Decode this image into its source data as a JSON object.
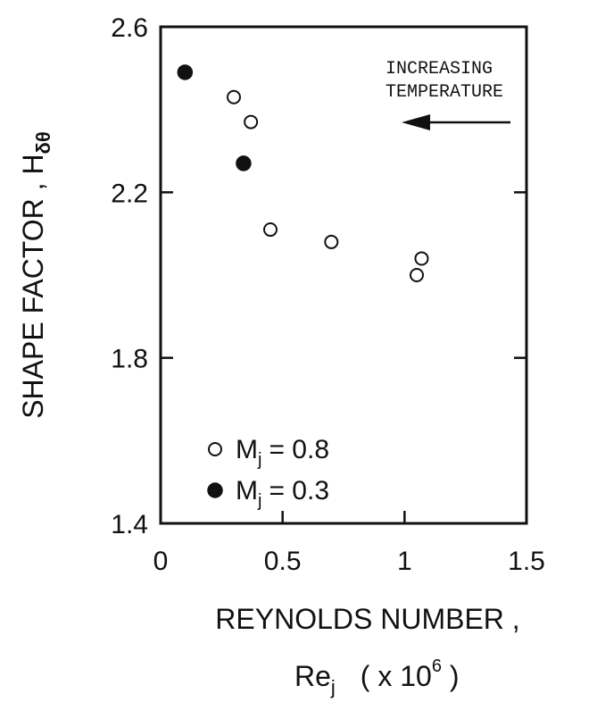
{
  "chart_data": {
    "type": "scatter",
    "xlim": [
      0,
      1.5
    ],
    "ylim": [
      1.4,
      2.6
    ],
    "x_ticks": [
      "0",
      "0.5",
      "1",
      "1.5"
    ],
    "y_ticks": [
      "1.4",
      "1.8",
      "2.2",
      "2.6"
    ],
    "x_tick_values": [
      0,
      0.5,
      1,
      1.5
    ],
    "y_tick_values": [
      1.4,
      1.8,
      2.2,
      2.6
    ],
    "xlabel_line1": "REYNOLDS NUMBER ,",
    "xlabel_base": "Re",
    "xlabel_sub": "j",
    "xlabel_paren_open": "( x 10",
    "xlabel_exp": "6",
    "xlabel_paren_close": " )",
    "ylabel_text": "SHAPE FACTOR ,  H",
    "ylabel_sub": "δθ",
    "annotation_line1": "INCREASING",
    "annotation_line2": "TEMPERATURE",
    "legend_position": "bottom-left",
    "series": [
      {
        "name": "M_j = 0.8",
        "legend_prefix": "M",
        "legend_sub": "j",
        "legend_value": "=  0.8",
        "marker": "open-circle",
        "x": [
          0.3,
          0.37,
          0.45,
          0.7,
          1.05,
          1.07
        ],
        "y": [
          2.43,
          2.37,
          2.11,
          2.08,
          2.0,
          2.04
        ]
      },
      {
        "name": "M_j = 0.3",
        "legend_prefix": "M",
        "legend_sub": "j",
        "legend_value": "=  0.3",
        "marker": "filled-circle",
        "x": [
          0.1,
          0.34
        ],
        "y": [
          2.49,
          2.27
        ]
      }
    ]
  }
}
